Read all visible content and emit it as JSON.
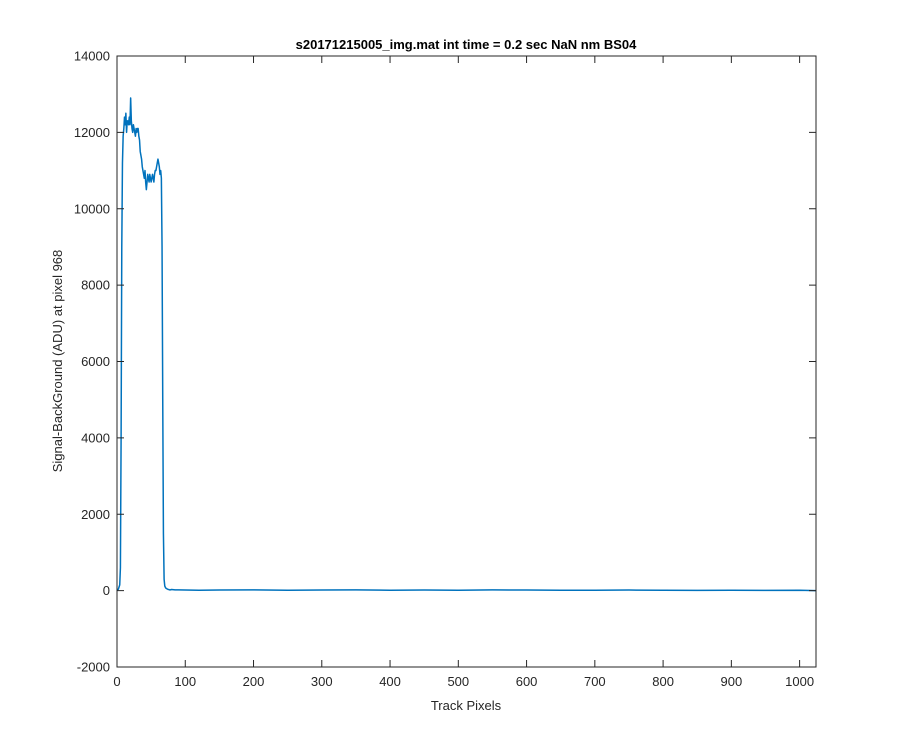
{
  "chart_data": {
    "type": "line",
    "title": "s20171215005_img.mat int time = 0.2 sec  NaN nm BS04",
    "xlabel": "Track Pixels",
    "ylabel": "Signal-BackGround (ADU) at pixel 968",
    "xlim": [
      0,
      1024
    ],
    "ylim": [
      -2000,
      14000
    ],
    "xticks": [
      0,
      100,
      200,
      300,
      400,
      500,
      600,
      700,
      800,
      900,
      1000
    ],
    "yticks": [
      -2000,
      0,
      2000,
      4000,
      6000,
      8000,
      10000,
      12000,
      14000
    ],
    "xtick_labels": [
      "0",
      "100",
      "200",
      "300",
      "400",
      "500",
      "600",
      "700",
      "800",
      "900",
      "1000"
    ],
    "ytick_labels": [
      "-2000",
      "0",
      "2000",
      "4000",
      "6000",
      "8000",
      "10000",
      "12000",
      "14000"
    ],
    "grid": false,
    "series": [
      {
        "color": "#0072BD",
        "x": [
          0,
          2,
          4,
          5,
          6,
          7,
          8,
          9,
          10,
          11,
          12,
          13,
          14,
          15,
          16,
          17,
          18,
          19,
          20,
          21,
          22,
          23,
          24,
          25,
          26,
          27,
          28,
          29,
          30,
          31,
          32,
          33,
          34,
          35,
          36,
          37,
          38,
          39,
          40,
          41,
          42,
          43,
          44,
          45,
          46,
          47,
          48,
          49,
          50,
          51,
          52,
          53,
          54,
          55,
          56,
          57,
          58,
          59,
          60,
          61,
          62,
          63,
          64,
          65,
          66,
          67,
          68,
          69,
          70,
          71,
          72,
          73,
          74,
          75,
          76,
          77,
          78,
          80,
          85,
          90,
          100,
          120,
          150,
          200,
          250,
          300,
          350,
          400,
          450,
          500,
          550,
          600,
          650,
          700,
          750,
          800,
          850,
          900,
          950,
          1000,
          1024
        ],
        "y": [
          0,
          40,
          150,
          600,
          4000,
          9000,
          11200,
          11900,
          12100,
          12400,
          12200,
          12500,
          12000,
          12300,
          12300,
          12200,
          12400,
          12200,
          12900,
          12300,
          12100,
          12000,
          12200,
          12100,
          12000,
          11900,
          12100,
          12000,
          12100,
          12100,
          11900,
          11800,
          11500,
          11400,
          11300,
          11100,
          11000,
          10900,
          10800,
          11000,
          10700,
          10500,
          10700,
          10900,
          10800,
          10700,
          10900,
          10800,
          10700,
          10800,
          10900,
          10800,
          10700,
          10900,
          11000,
          11000,
          11100,
          11200,
          11300,
          11200,
          11100,
          10900,
          11000,
          10800,
          9000,
          5000,
          1500,
          300,
          120,
          80,
          60,
          50,
          40,
          30,
          30,
          20,
          20,
          30,
          20,
          20,
          15,
          10,
          15,
          20,
          10,
          15,
          20,
          10,
          15,
          10,
          20,
          15,
          10,
          10,
          15,
          10,
          5,
          10,
          5,
          10,
          0
        ]
      }
    ]
  }
}
